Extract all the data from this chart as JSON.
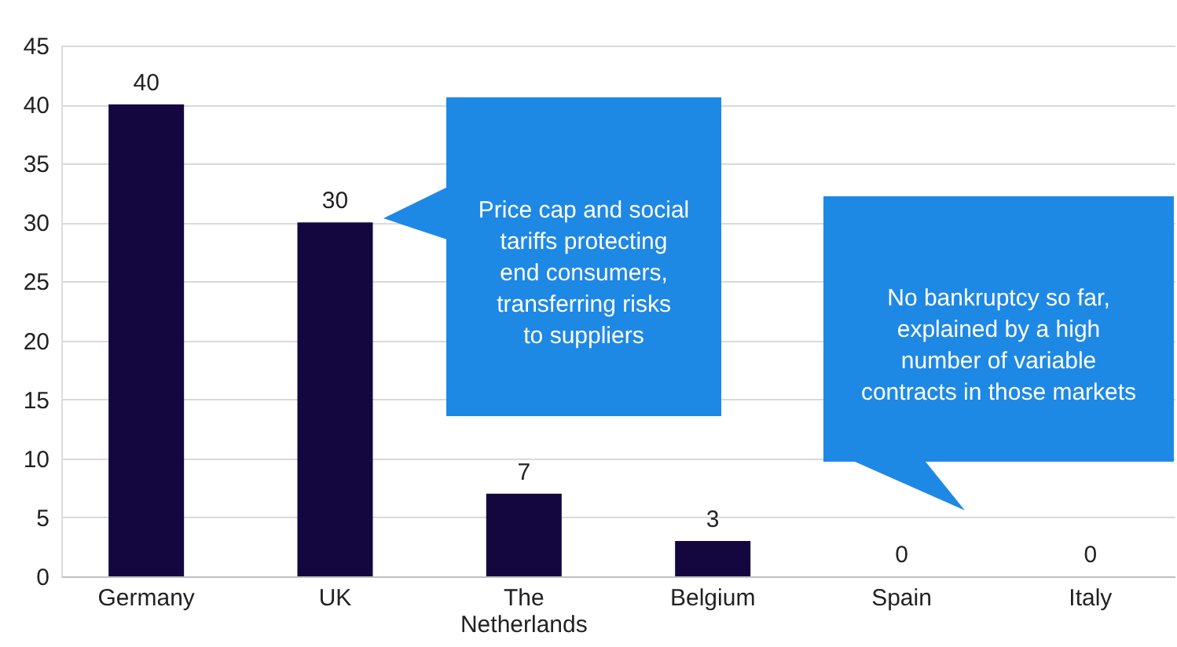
{
  "chart_data": {
    "type": "bar",
    "categories": [
      "Germany",
      "UK",
      "The Netherlands",
      "Belgium",
      "Spain",
      "Italy"
    ],
    "values": [
      40,
      30,
      7,
      3,
      0,
      0
    ],
    "color": "#14063e",
    "ylim": [
      0,
      45
    ],
    "yticks": [
      0,
      5,
      10,
      15,
      20,
      25,
      30,
      35,
      40,
      45
    ],
    "grid": "y",
    "data_labels": true,
    "annotations": [
      "Price cap and social\ntariffs protecting\nend consumers,\ntransferring risks\nto suppliers",
      "No bankruptcy so far,\nexplained by a high\nnumber of variable\ncontracts in those markets"
    ]
  }
}
